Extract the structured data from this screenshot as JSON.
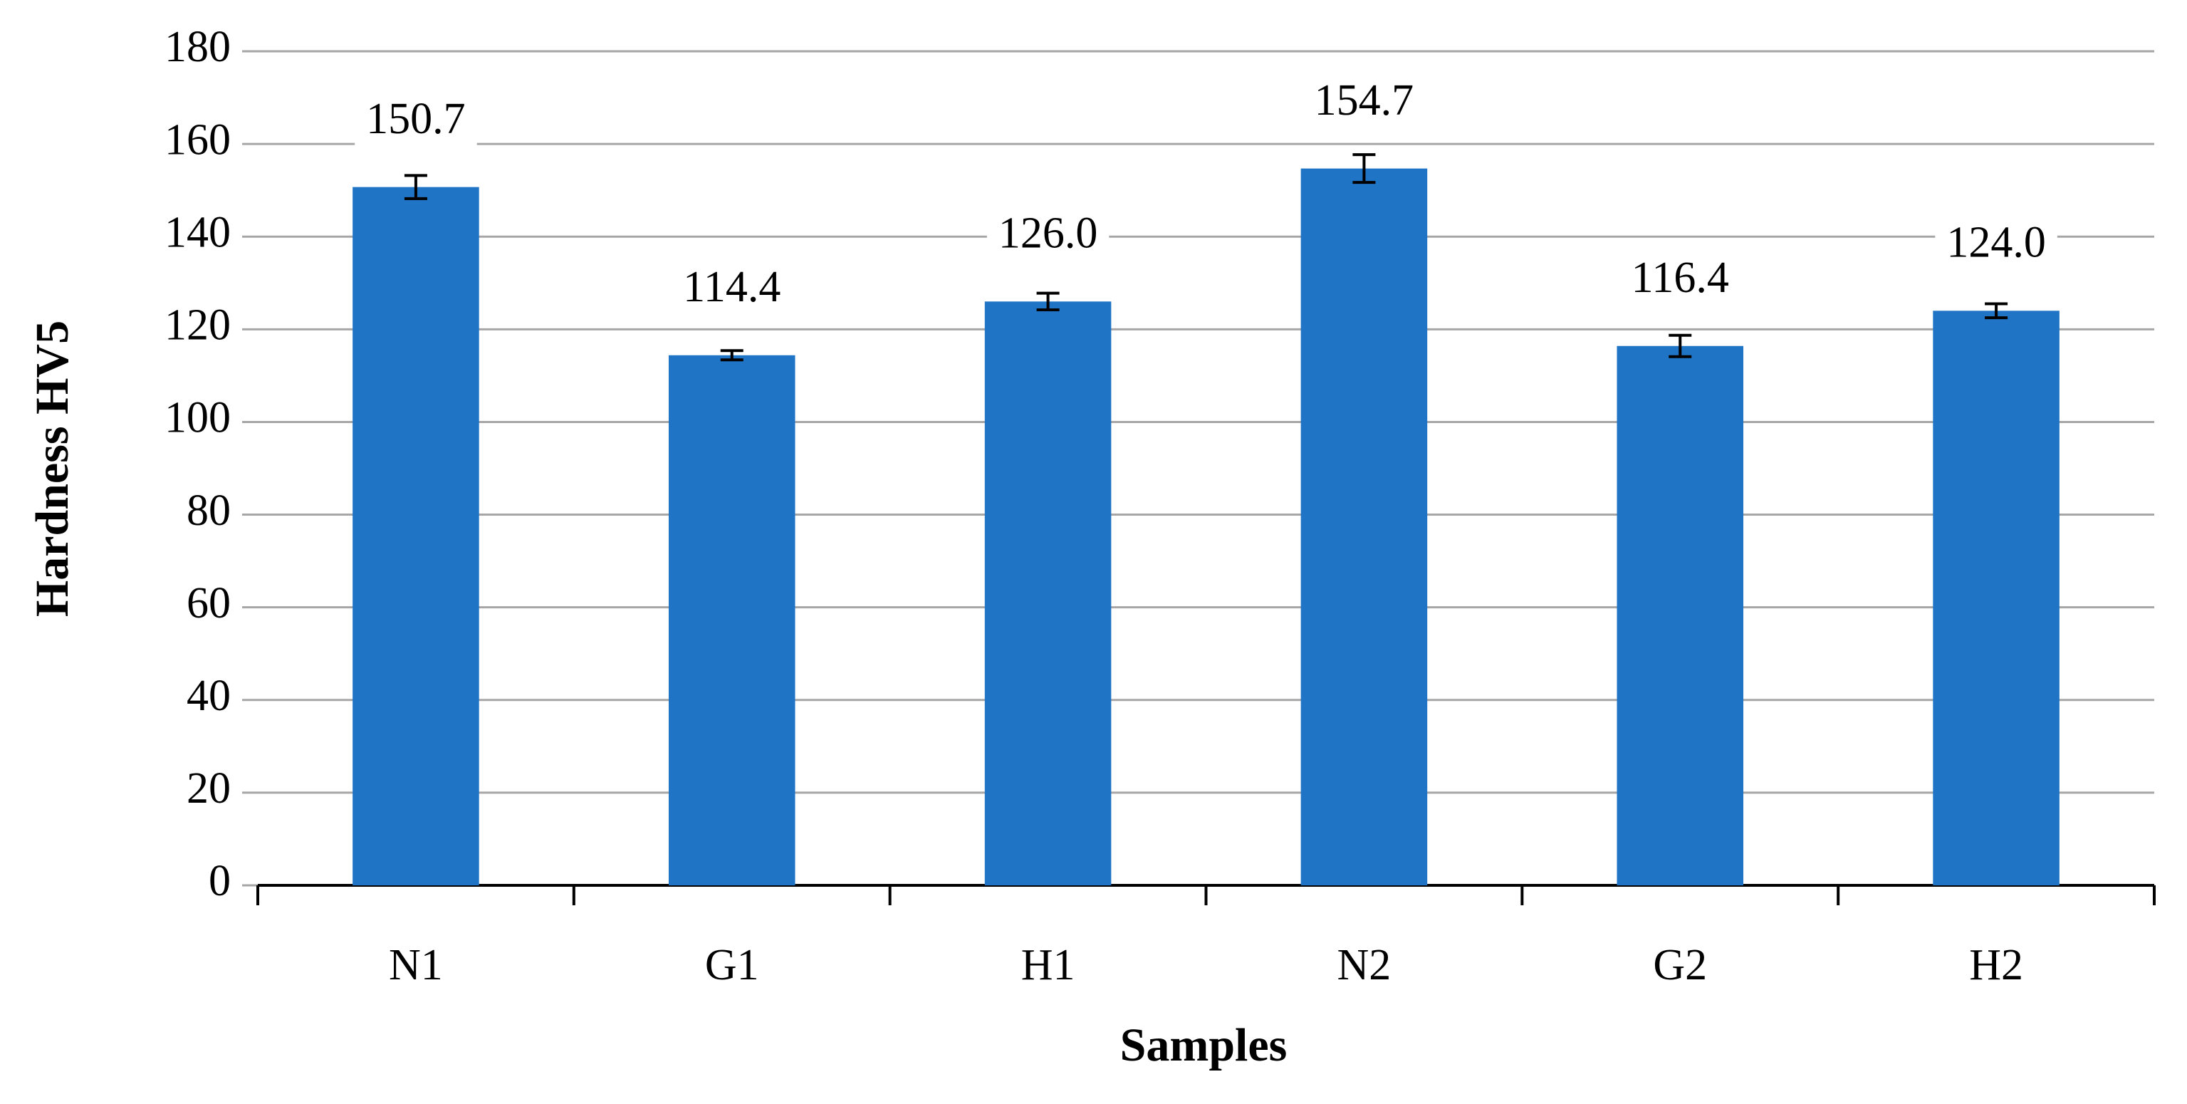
{
  "chart_data": {
    "type": "bar",
    "x_label": "Samples",
    "y_label": "Hardness HV5",
    "categories": [
      "N1",
      "G1",
      "H1",
      "N2",
      "G2",
      "H2"
    ],
    "values": [
      150.7,
      114.4,
      126.0,
      154.7,
      116.4,
      124.0
    ],
    "value_labels": [
      "150.7",
      "114.4",
      "126.0",
      "154.7",
      "116.4",
      "124.0"
    ],
    "errors": [
      2.5,
      1.0,
      1.8,
      3.0,
      2.3,
      1.5
    ],
    "color": "#1f74c6",
    "ylim": [
      0,
      180
    ],
    "yticks": [
      0,
      20,
      40,
      60,
      80,
      100,
      120,
      140,
      160,
      180
    ],
    "grid": true
  }
}
